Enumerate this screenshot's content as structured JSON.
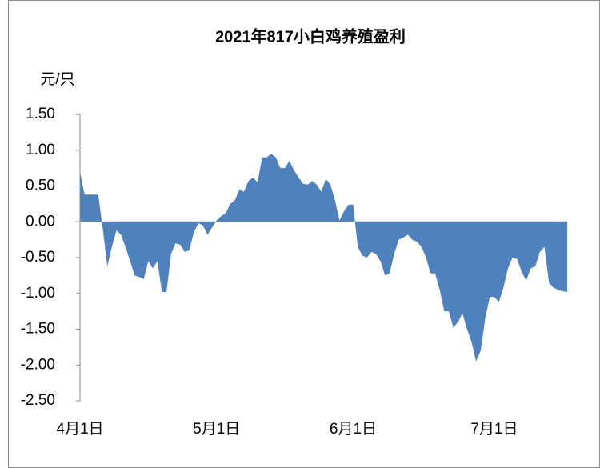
{
  "chart_data": {
    "type": "area",
    "title": "2021年817小白鸡养殖盈利",
    "y_label": "元/只",
    "color": "#4f81bd",
    "categories": [
      "4月1日",
      null,
      null,
      null,
      null,
      null,
      null,
      null,
      null,
      null,
      null,
      null,
      null,
      null,
      null,
      null,
      null,
      null,
      null,
      null,
      null,
      null,
      null,
      null,
      null,
      null,
      null,
      null,
      null,
      null,
      "5月1日",
      null,
      null,
      null,
      null,
      null,
      null,
      null,
      null,
      null,
      null,
      null,
      null,
      null,
      null,
      null,
      null,
      null,
      null,
      null,
      null,
      null,
      null,
      null,
      null,
      null,
      null,
      null,
      null,
      null,
      "6月1日",
      null,
      null,
      null,
      null,
      null,
      null,
      null,
      null,
      null,
      null,
      null,
      null,
      null,
      null,
      null,
      null,
      null,
      null,
      null,
      null,
      null,
      null,
      null,
      null,
      null,
      null,
      null,
      null,
      null,
      null,
      "7月1日",
      null,
      null,
      null,
      null,
      null,
      null,
      null,
      null,
      null,
      null,
      null,
      null,
      null,
      null,
      null,
      null
    ],
    "values": [
      0.7,
      0.38,
      0.38,
      0.38,
      0.38,
      -0.1,
      -0.62,
      -0.35,
      -0.12,
      -0.18,
      -0.35,
      -0.55,
      -0.75,
      -0.77,
      -0.8,
      -0.55,
      -0.65,
      -0.55,
      -0.98,
      -0.98,
      -0.45,
      -0.3,
      -0.32,
      -0.42,
      -0.4,
      -0.15,
      -0.02,
      -0.05,
      -0.18,
      -0.08,
      0.02,
      0.08,
      0.12,
      0.25,
      0.3,
      0.45,
      0.42,
      0.57,
      0.62,
      0.55,
      0.9,
      0.9,
      0.95,
      0.9,
      0.75,
      0.75,
      0.85,
      0.72,
      0.62,
      0.53,
      0.52,
      0.57,
      0.52,
      0.42,
      0.6,
      0.52,
      0.3,
      0.02,
      0.15,
      0.24,
      0.24,
      -0.35,
      -0.47,
      -0.5,
      -0.42,
      -0.45,
      -0.55,
      -0.75,
      -0.72,
      -0.45,
      -0.25,
      -0.22,
      -0.18,
      -0.25,
      -0.28,
      -0.35,
      -0.5,
      -0.72,
      -0.72,
      -0.95,
      -1.25,
      -1.25,
      -1.48,
      -1.4,
      -1.28,
      -1.5,
      -1.68,
      -1.95,
      -1.8,
      -1.35,
      -1.05,
      -1.05,
      -1.12,
      -0.92,
      -0.65,
      -0.5,
      -0.52,
      -0.7,
      -0.82,
      -0.65,
      -0.62,
      -0.42,
      -0.35,
      -0.85,
      -0.92,
      -0.95,
      -0.97,
      -0.98
    ],
    "ylim": [
      -2.5,
      1.5
    ],
    "yticks": [
      {
        "value": 1.5,
        "label": "1.50"
      },
      {
        "value": 1.0,
        "label": "1.00"
      },
      {
        "value": 0.5,
        "label": "0.50"
      },
      {
        "value": 0,
        "label": "0.00"
      },
      {
        "value": -0.5,
        "label": "-0.50"
      },
      {
        "value": -1.0,
        "label": "-1.00"
      },
      {
        "value": -1.5,
        "label": "-1.50"
      },
      {
        "value": -2.0,
        "label": "-2.00"
      },
      {
        "value": -2.5,
        "label": "-2.50"
      }
    ]
  }
}
